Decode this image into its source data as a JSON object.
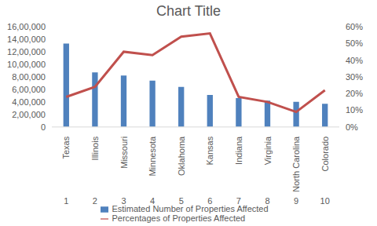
{
  "chart_data": {
    "type": "bar",
    "title": "Chart Title",
    "categories": [
      "Texas",
      "Illinois",
      "Missouri",
      "Minnesota",
      "Oklahoma",
      "Kansas",
      "Indiana",
      "Virginia",
      "North Carolina",
      "Colorado"
    ],
    "category_numbers": [
      1,
      2,
      3,
      4,
      5,
      6,
      7,
      8,
      9,
      10
    ],
    "series": [
      {
        "name": "Estimated Number of Properties Affected",
        "type": "bar",
        "color": "#4f81bd",
        "values": [
          1330000,
          870000,
          820000,
          740000,
          640000,
          510000,
          460000,
          420000,
          400000,
          370000
        ]
      },
      {
        "name": "Percentages of Properties Affected",
        "type": "line",
        "axis": "y2",
        "color": "#c0504d",
        "marker": "none",
        "values": [
          18,
          24,
          45,
          43,
          54,
          56,
          18,
          15,
          9,
          22
        ]
      }
    ],
    "ylim": [
      0,
      1600000
    ],
    "yticks": [
      0,
      {
        "value": 200000,
        "label": "2,00,000"
      },
      {
        "value": 400000,
        "label": "4,00,000"
      },
      {
        "value": 600000,
        "label": "6,00,000"
      },
      {
        "value": 800000,
        "label": "8,00,000"
      },
      {
        "value": 1000000,
        "label": "10,00,000"
      },
      {
        "value": 1200000,
        "label": "12,00,000"
      },
      {
        "value": 1400000,
        "label": "14,00,000"
      },
      {
        "value": 1600000,
        "label": "16,00,000"
      }
    ],
    "y2lim": [
      0,
      60
    ],
    "y2ticks": [
      {
        "value": 0,
        "label": "0%"
      },
      {
        "value": 10,
        "label": "10%"
      },
      {
        "value": 20,
        "label": "20%"
      },
      {
        "value": 30,
        "label": "30%"
      },
      {
        "value": 40,
        "label": "40%"
      },
      {
        "value": 50,
        "label": "50%"
      },
      {
        "value": 60,
        "label": "60%"
      }
    ],
    "grid": false,
    "legend": "bottom"
  }
}
